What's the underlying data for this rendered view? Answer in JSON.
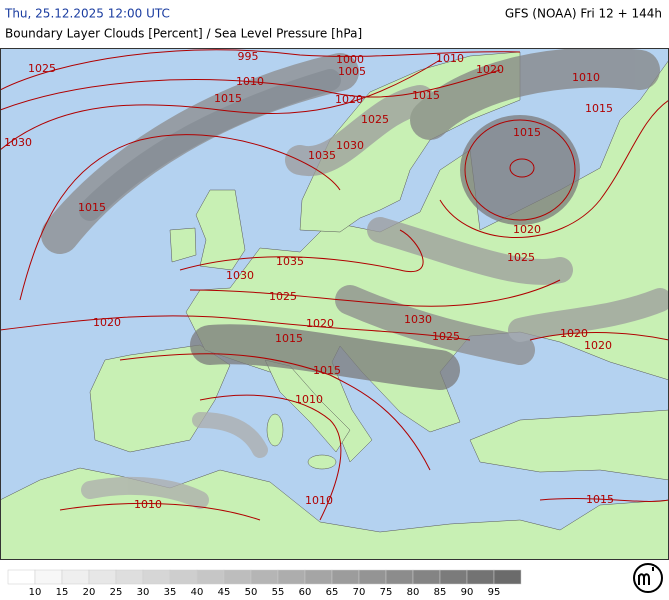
{
  "header": {
    "datetime": "Thu, 25.12.2025 12:00 UTC",
    "model": "GFS (NOAA) Fri 12 + 144h",
    "title": "Boundary Layer Clouds [Percent] / Sea Level Pressure [hPa]"
  },
  "isobar_labels": [
    995,
    1000,
    1005,
    1010,
    1010,
    1020,
    1010,
    1025,
    1015,
    1020,
    1015,
    1015,
    1025,
    1030,
    1015,
    1030,
    1035,
    1015,
    1020,
    1025,
    1035,
    1030,
    1025,
    1020,
    1020,
    1030,
    1025,
    1020,
    1020,
    1015,
    1015,
    1010,
    1010,
    1010,
    1015
  ],
  "legend": {
    "labels": [
      10,
      15,
      20,
      25,
      30,
      35,
      40,
      45,
      50,
      55,
      60,
      65,
      70,
      75,
      80,
      85,
      90,
      95
    ],
    "colors": [
      "#ffffff",
      "#f7f7f7",
      "#efefef",
      "#e7e7e7",
      "#dedede",
      "#d6d6d6",
      "#cecece",
      "#c6c6c6",
      "#bdbdbd",
      "#b5b5b5",
      "#adadad",
      "#a5a5a5",
      "#9c9c9c",
      "#949494",
      "#8c8c8c",
      "#848484",
      "#7b7b7b",
      "#737373",
      "#6b6b6b"
    ]
  }
}
